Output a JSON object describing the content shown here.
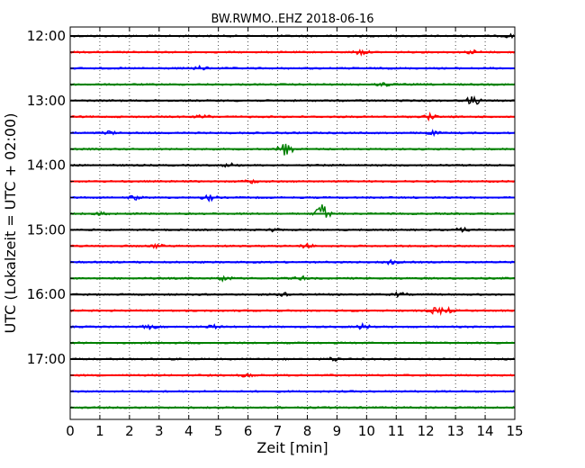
{
  "chart_data": {
    "type": "line",
    "title": "BW.RWMO..EHZ 2018-06-16",
    "xlabel": "Zeit  [min]",
    "ylabel": "UTC (Lokalzeit = UTC + 02:00)",
    "xlim": [
      0,
      15
    ],
    "x_ticks": [
      "0",
      "1",
      "2",
      "3",
      "4",
      "5",
      "6",
      "7",
      "8",
      "9",
      "10",
      "11",
      "12",
      "13",
      "14",
      "15"
    ],
    "y_tick_labels": [
      "12:00",
      "13:00",
      "14:00",
      "15:00",
      "16:00",
      "17:00"
    ],
    "grid": "vertical dotted",
    "colors": [
      "#000000",
      "#ff0000",
      "#0000ff",
      "#008000"
    ],
    "traces": [
      {
        "start": "12:00",
        "color": "#000000",
        "events": [
          {
            "x": 14.9,
            "amp": 2
          }
        ]
      },
      {
        "start": "12:15",
        "color": "#ff0000",
        "events": [
          {
            "x": 9.8,
            "amp": 3
          },
          {
            "x": 13.6,
            "amp": 2
          }
        ]
      },
      {
        "start": "12:30",
        "color": "#0000ff",
        "events": [
          {
            "x": 4.4,
            "amp": 2
          }
        ]
      },
      {
        "start": "12:45",
        "color": "#008000",
        "events": [
          {
            "x": 10.6,
            "amp": 2
          }
        ]
      },
      {
        "start": "13:00",
        "color": "#000000",
        "events": [
          {
            "x": 13.6,
            "amp": 5
          }
        ]
      },
      {
        "start": "13:15",
        "color": "#ff0000",
        "events": [
          {
            "x": 12.1,
            "amp": 3
          },
          {
            "x": 4.5,
            "amp": 2
          }
        ]
      },
      {
        "start": "13:30",
        "color": "#0000ff",
        "events": [
          {
            "x": 1.3,
            "amp": 2
          },
          {
            "x": 12.2,
            "amp": 2
          }
        ]
      },
      {
        "start": "13:45",
        "color": "#008000",
        "events": [
          {
            "x": 7.25,
            "amp": 8
          }
        ]
      },
      {
        "start": "14:00",
        "color": "#000000",
        "events": [
          {
            "x": 5.4,
            "amp": 2
          }
        ]
      },
      {
        "start": "14:15",
        "color": "#ff0000",
        "events": [
          {
            "x": 6.1,
            "amp": 2
          }
        ]
      },
      {
        "start": "14:30",
        "color": "#0000ff",
        "events": [
          {
            "x": 2.2,
            "amp": 2
          },
          {
            "x": 4.7,
            "amp": 3
          }
        ]
      },
      {
        "start": "14:45",
        "color": "#008000",
        "events": [
          {
            "x": 8.5,
            "amp": 11
          },
          {
            "x": 1.1,
            "amp": 2
          }
        ]
      },
      {
        "start": "15:00",
        "color": "#000000",
        "events": [
          {
            "x": 6.8,
            "amp": 2
          },
          {
            "x": 13.2,
            "amp": 2
          }
        ]
      },
      {
        "start": "15:15",
        "color": "#ff0000",
        "events": [
          {
            "x": 2.9,
            "amp": 2
          },
          {
            "x": 8.0,
            "amp": 2
          }
        ]
      },
      {
        "start": "15:30",
        "color": "#0000ff",
        "events": [
          {
            "x": 10.8,
            "amp": 2
          }
        ]
      },
      {
        "start": "15:45",
        "color": "#008000",
        "events": [
          {
            "x": 5.2,
            "amp": 3
          },
          {
            "x": 7.8,
            "amp": 2
          }
        ]
      },
      {
        "start": "16:00",
        "color": "#000000",
        "events": [
          {
            "x": 7.3,
            "amp": 2
          },
          {
            "x": 11.1,
            "amp": 2
          }
        ]
      },
      {
        "start": "16:15",
        "color": "#ff0000",
        "events": [
          {
            "x": 12.3,
            "amp": 3
          },
          {
            "x": 12.7,
            "amp": 3
          }
        ]
      },
      {
        "start": "16:30",
        "color": "#0000ff",
        "events": [
          {
            "x": 2.7,
            "amp": 2
          },
          {
            "x": 4.8,
            "amp": 2
          },
          {
            "x": 9.9,
            "amp": 3
          }
        ]
      },
      {
        "start": "16:45",
        "color": "#008000",
        "events": []
      },
      {
        "start": "17:00",
        "color": "#000000",
        "events": [
          {
            "x": 8.9,
            "amp": 2
          }
        ]
      },
      {
        "start": "17:15",
        "color": "#ff0000",
        "events": [
          {
            "x": 6.0,
            "amp": 2
          }
        ]
      },
      {
        "start": "17:30",
        "color": "#0000ff",
        "events": []
      },
      {
        "start": "17:45",
        "color": "#008000",
        "events": []
      }
    ]
  }
}
